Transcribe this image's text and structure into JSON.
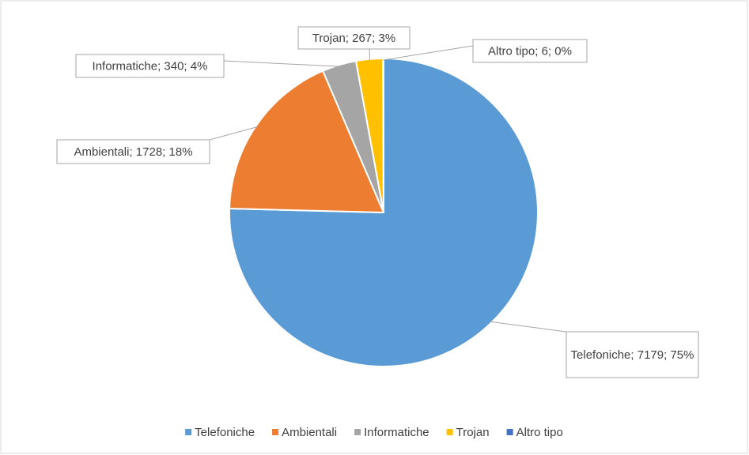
{
  "chart_data": {
    "type": "pie",
    "categories": [
      "Telefoniche",
      "Ambientali",
      "Informatiche",
      "Trojan",
      "Altro tipo"
    ],
    "values": [
      7179,
      1728,
      340,
      267,
      6
    ],
    "value_labels": [
      "Telefoniche; 7179; 75%",
      "Ambientali; 1728; 18%",
      "Informatiche; 340; 4%",
      "Trojan; 267; 3%",
      "Altro tipo; 6; 0%"
    ],
    "colors": [
      "#5b9bd5",
      "#ed7d31",
      "#a5a5a5",
      "#ffc000",
      "#4472c4"
    ],
    "legend": "bottom"
  }
}
